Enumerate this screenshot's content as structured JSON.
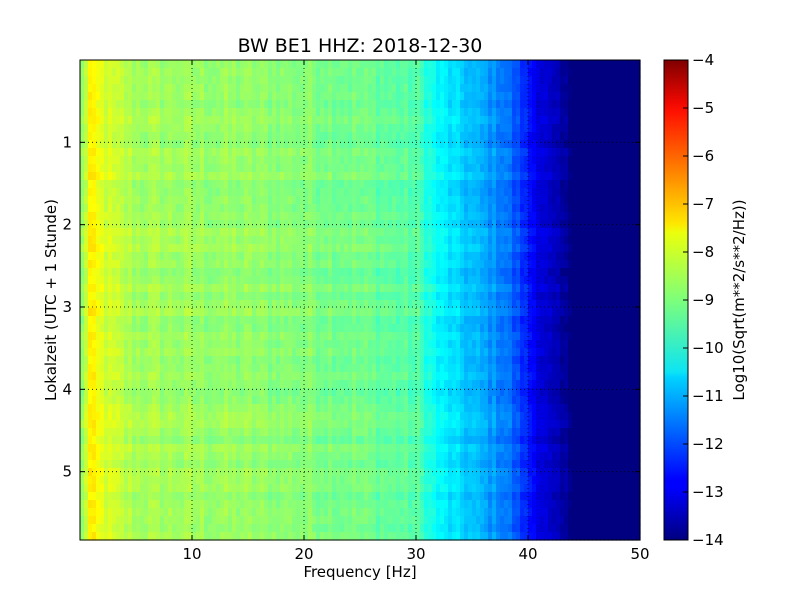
{
  "chart_data": {
    "type": "heatmap",
    "title": "BW BE1 HHZ: 2018-12-30",
    "xlabel": "Frequency [Hz]",
    "ylabel": "Lokalzeit (UTC + 1 Stunde)",
    "xlim": [
      0,
      50
    ],
    "ylim": [
      5.83,
      0
    ],
    "x_ticks": [
      10,
      20,
      30,
      40,
      50
    ],
    "y_ticks": [
      1,
      2,
      3,
      4,
      5
    ],
    "grid": true,
    "grid_style": "dotted",
    "colormap": "jet",
    "colorbar": {
      "label": "Log10(Sqrt(m**2/s**2/Hz))",
      "range": [
        -14,
        -4
      ],
      "ticks": [
        -4,
        -5,
        -6,
        -7,
        -8,
        -9,
        -10,
        -11,
        -12,
        -13,
        -14
      ]
    },
    "profile": {
      "description_points_hz": [
        0.3,
        0.8,
        1.5,
        2.5,
        5,
        10,
        20,
        25,
        30,
        32,
        35,
        38,
        40,
        42,
        44,
        46,
        50
      ],
      "log_amplitude": [
        -8.8,
        -7.6,
        -7.9,
        -8.2,
        -8.6,
        -8.7,
        -8.9,
        -9.1,
        -9.4,
        -10.3,
        -10.9,
        -11.5,
        -12.5,
        -13.4,
        -14,
        -14,
        -14
      ]
    }
  }
}
